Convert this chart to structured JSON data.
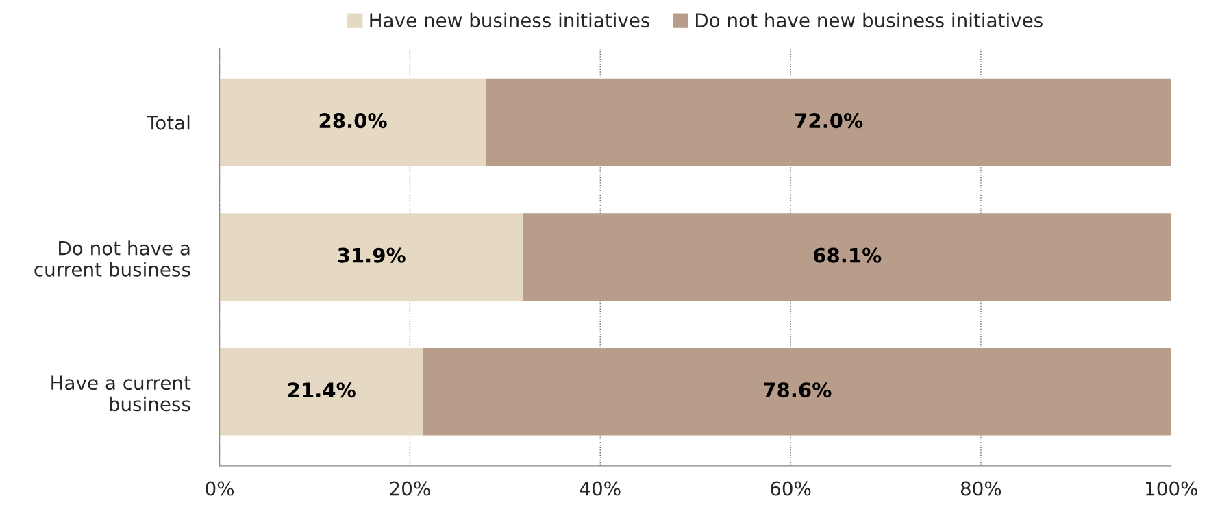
{
  "chart_data": {
    "type": "bar",
    "orientation": "horizontal",
    "stacked": true,
    "categories": [
      "Total",
      "Do not have a\ncurrent business",
      "Have a current\nbusiness"
    ],
    "series": [
      {
        "name": "Have new business initiatives",
        "color": "#e5d9c3",
        "values": [
          28.0,
          31.9,
          21.4
        ],
        "value_labels": [
          "28.0%",
          "31.9%",
          "21.4%"
        ]
      },
      {
        "name": "Do not have new business initiatives",
        "color": "#b89e8a",
        "values": [
          72.0,
          68.1,
          78.6
        ],
        "value_labels": [
          "72.0%",
          "68.1%",
          "78.6%"
        ]
      }
    ],
    "xlim": [
      0,
      100
    ],
    "xticks": [
      {
        "value": 0,
        "label": "0%"
      },
      {
        "value": 20,
        "label": "20%"
      },
      {
        "value": 40,
        "label": "40%"
      },
      {
        "value": 60,
        "label": "60%"
      },
      {
        "value": 80,
        "label": "80%"
      },
      {
        "value": 100,
        "label": "100%"
      }
    ],
    "grid": "x",
    "legend": "top"
  }
}
